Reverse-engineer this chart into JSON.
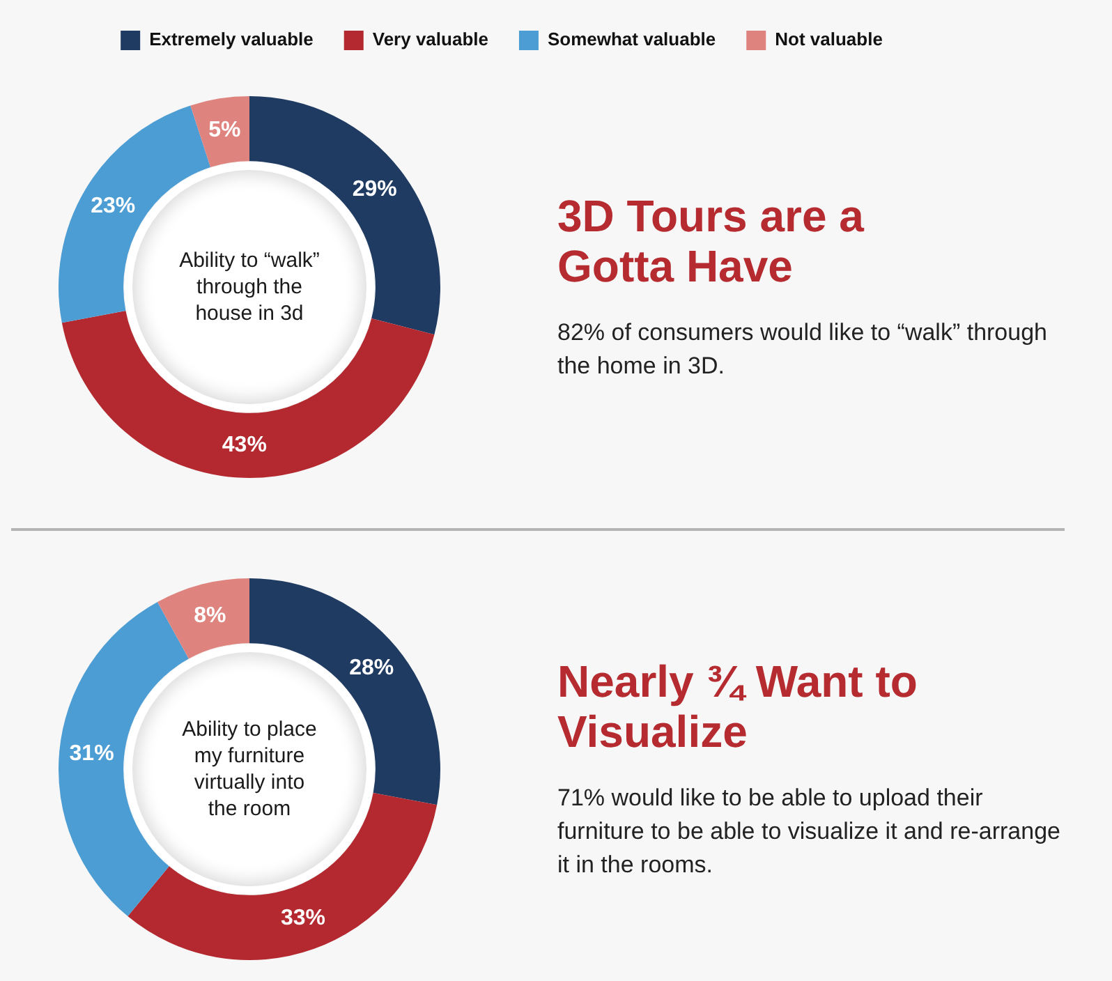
{
  "chart_data": [
    {
      "type": "donut",
      "title": "3D Tours are a Gotta Have",
      "subtitle": "82% of consumers would like to “walk” through the home in 3D.",
      "annotations": [
        "Ability to “walk” through the house in 3d"
      ],
      "categories": [
        "Extremely valuable",
        "Very valuable",
        "Somewhat valuable",
        "Not valuable"
      ],
      "values": [
        29,
        43,
        23,
        5
      ],
      "colors": [
        "#1f3b62",
        "#b3292f",
        "#4c9dd4",
        "#df837e"
      ],
      "value_labels": [
        "29%",
        "43%",
        "23%",
        "5%"
      ],
      "legend": "top"
    },
    {
      "type": "donut",
      "title": "Nearly ¾ Want to Visualize",
      "subtitle": "71% would like to be able to upload their furniture to be able to visualize it and re-arrange it in the rooms.",
      "annotations": [
        "Ability to place my furniture virtually into the room"
      ],
      "categories": [
        null,
        null,
        null,
        null
      ],
      "values": [
        28,
        33,
        31,
        8
      ],
      "colors": [
        "#1f3b62",
        "#b3292f",
        "#4c9dd4",
        "#df837e"
      ],
      "value_labels": [
        "28%",
        "33%",
        "31%",
        "8%"
      ]
    }
  ]
}
